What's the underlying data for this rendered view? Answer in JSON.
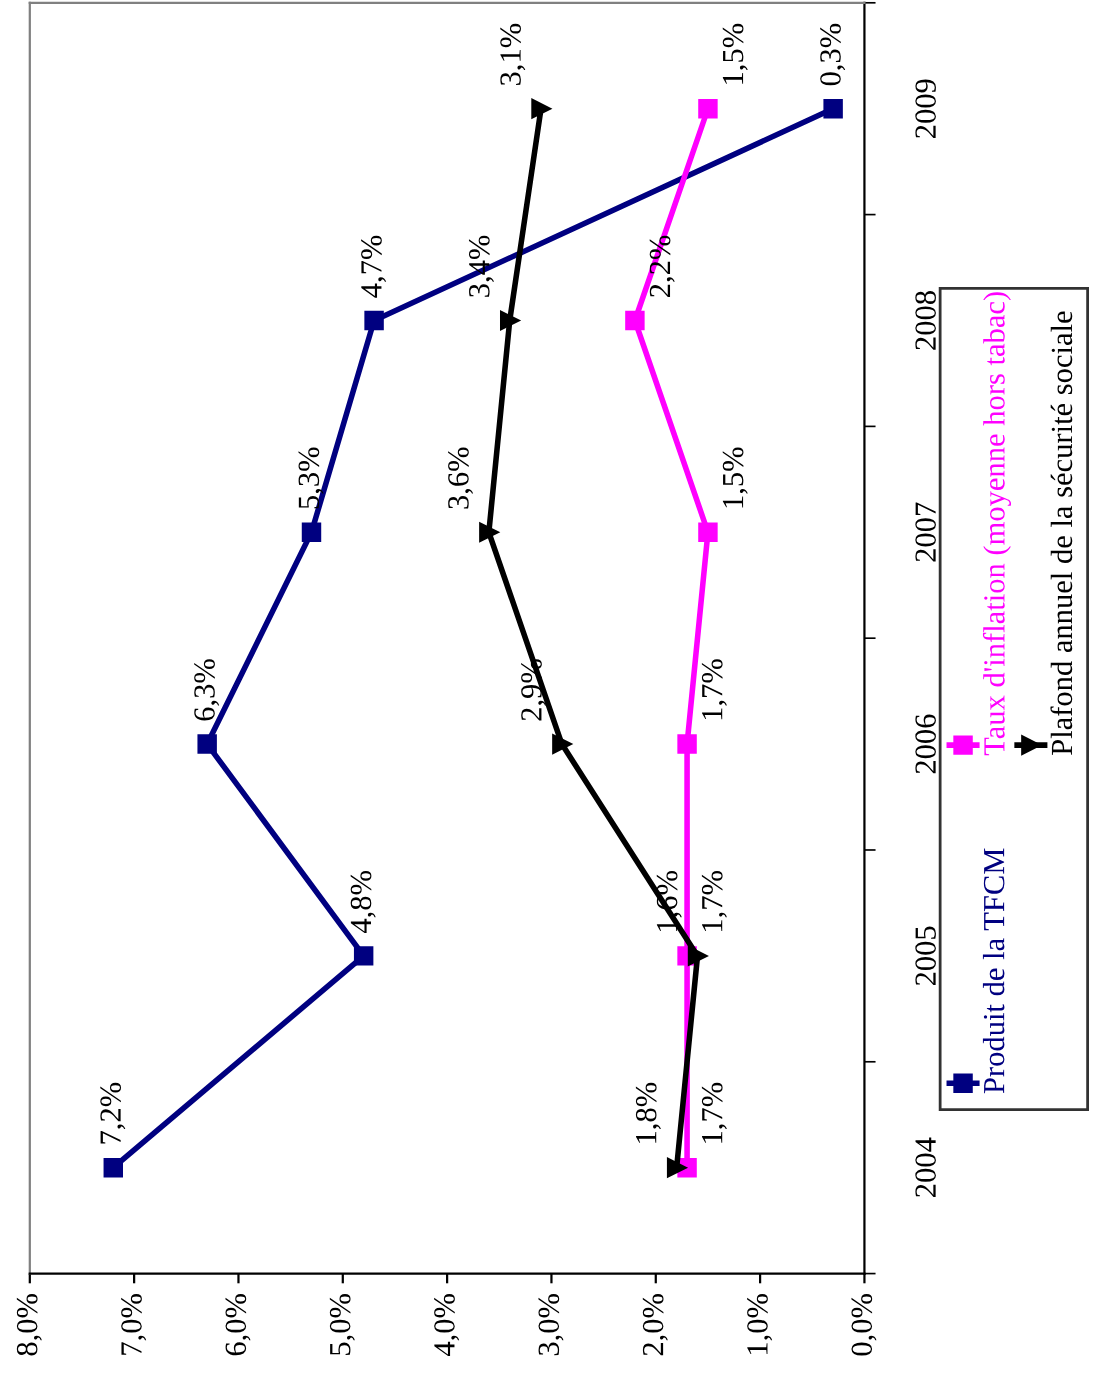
{
  "chart_data": {
    "type": "line",
    "orientation": "horizontal",
    "categories": [
      "2009",
      "2008",
      "2007",
      "2006",
      "2005",
      "2004"
    ],
    "series": [
      {
        "name": "Produit de la TFCM",
        "color": "#000080",
        "marker": "square",
        "values": [
          0.3,
          4.7,
          5.3,
          6.3,
          4.8,
          7.2
        ],
        "value_labels": [
          "0,3%",
          "4,7%",
          "5,3%",
          "6,3%",
          "4,8%",
          "7,2%"
        ]
      },
      {
        "name": "Taux d'inflation (moyenne hors tabac)",
        "color": "#ff00ff",
        "marker": "square",
        "values": [
          1.5,
          2.2,
          1.5,
          1.7,
          1.7,
          1.7
        ],
        "value_labels": [
          "1,5%",
          "2,2%",
          "1,5%",
          "1,7%",
          "1,7%",
          "1,7%"
        ]
      },
      {
        "name": "Plafond annuel de la sécurité sociale",
        "color": "#000000",
        "marker": "triangle",
        "values": [
          3.1,
          3.4,
          3.6,
          2.9,
          1.6,
          1.8
        ],
        "value_labels": [
          "3,1%",
          "3,4%",
          "3,6%",
          "2,9%",
          "1,6%",
          "1,8%"
        ]
      }
    ],
    "xlim": [
      8,
      0
    ],
    "xticks": [
      {
        "value": 8,
        "label": "8,0%"
      },
      {
        "value": 7,
        "label": "7,0%"
      },
      {
        "value": 6,
        "label": "6,0%"
      },
      {
        "value": 5,
        "label": "5,0%"
      },
      {
        "value": 4,
        "label": "4,0%"
      },
      {
        "value": 3,
        "label": "3,0%"
      },
      {
        "value": 2,
        "label": "2,0%"
      },
      {
        "value": 1,
        "label": "1,0%"
      },
      {
        "value": 0,
        "label": "0,0%"
      }
    ],
    "legend": "right",
    "grid": false,
    "line_style": "solid"
  }
}
